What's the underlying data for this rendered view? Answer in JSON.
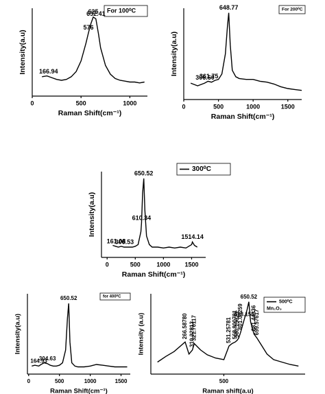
{
  "chart_data": [
    {
      "type": "line",
      "x_label": "Raman Shift(cm⁻¹)",
      "y_label": "Intensity(a.u)",
      "x": [
        100,
        150,
        200,
        250,
        300,
        350,
        400,
        450,
        500,
        550,
        576,
        600,
        625,
        652,
        680,
        700,
        750,
        800,
        850,
        900,
        950,
        1000,
        1050,
        1100,
        1150
      ],
      "series": [
        {
          "name": "For 100⁰C",
          "color": "#000000",
          "values": [
            22,
            23,
            21,
            19,
            18,
            19,
            22,
            28,
            40,
            60,
            72,
            82,
            90,
            88,
            70,
            55,
            35,
            25,
            20,
            18,
            17,
            16,
            16,
            15,
            16
          ]
        }
      ],
      "xlim": [
        0,
        1180
      ],
      "xticks": [
        0,
        500,
        1000
      ],
      "ylim": [
        0,
        100
      ],
      "annotations": [
        {
          "label": "166.94",
          "x": 166.94
        },
        {
          "label": "576",
          "x": 576
        },
        {
          "label": "625",
          "x": 625
        },
        {
          "label": "652.41",
          "x": 652.41
        }
      ]
    },
    {
      "type": "line",
      "x_label": "Raman Shift(cm⁻¹)",
      "y_label": "Intensity(a.u)",
      "x": [
        100,
        200,
        300,
        350,
        400,
        450,
        500,
        550,
        600,
        630,
        648.77,
        670,
        700,
        750,
        800,
        900,
        1000,
        1100,
        1200,
        1300,
        1400,
        1500,
        1600,
        1700
      ],
      "series": [
        {
          "name": "For 200⁰C",
          "color": "#000000",
          "values": [
            18,
            15,
            18,
            20,
            19,
            21,
            22,
            28,
            50,
            80,
            95,
            60,
            32,
            25,
            23,
            22,
            22,
            20,
            19,
            17,
            14,
            12,
            11,
            10
          ]
        }
      ],
      "xlim": [
        0,
        1700
      ],
      "xticks": [
        0,
        500,
        1000,
        1500
      ],
      "ylim": [
        0,
        100
      ],
      "annotations": [
        {
          "label": "306.60",
          "x": 306.6
        },
        {
          "label": "361.75",
          "x": 361.75
        },
        {
          "label": "648.77",
          "x": 648.77
        }
      ]
    },
    {
      "type": "line",
      "x_label": "Raman Shift(cm⁻¹)",
      "y_label": "Intensity(a.u)",
      "x": [
        100,
        150,
        200,
        250,
        300,
        350,
        400,
        450,
        500,
        550,
        600,
        610.34,
        630,
        650.52,
        670,
        700,
        750,
        800,
        900,
        1000,
        1100,
        1200,
        1300,
        1400,
        1500,
        1514.14,
        1550,
        1600
      ],
      "series": [
        {
          "name": "300⁰C",
          "color": "#000000",
          "values": [
            14,
            13,
            12,
            13,
            12,
            12,
            12,
            12,
            13,
            15,
            30,
            40,
            75,
            92,
            55,
            25,
            15,
            12,
            12,
            11,
            12,
            11,
            12,
            11,
            15,
            18,
            14,
            12
          ]
        }
      ],
      "xlim": [
        -100,
        1750
      ],
      "xticks": [
        0,
        500,
        1000,
        1500
      ],
      "ylim": [
        0,
        100
      ],
      "annotations": [
        {
          "label": "161.08",
          "x": 161.08
        },
        {
          "label": "306.53",
          "x": 306.53
        },
        {
          "label": "610.34",
          "x": 610.34
        },
        {
          "label": "650.52",
          "x": 650.52
        },
        {
          "label": "1514.14",
          "x": 1514.14
        }
      ]
    },
    {
      "type": "line",
      "x_label": "Raman Shift(cm⁻¹)",
      "y_label": "Intensity(a.u)",
      "x": [
        50,
        100,
        164.93,
        200,
        250,
        304.63,
        350,
        400,
        450,
        500,
        550,
        600,
        630,
        650.52,
        670,
        700,
        750,
        800,
        900,
        1000,
        1100,
        1200,
        1300,
        1400,
        1500,
        1600
      ],
      "series": [
        {
          "name": "for 400⁰C",
          "color": "#000000",
          "values": [
            10,
            11,
            10,
            12,
            14,
            13,
            11,
            10,
            10,
            11,
            14,
            30,
            70,
            88,
            40,
            14,
            10,
            9,
            9,
            10,
            12,
            11,
            10,
            9,
            9,
            9
          ]
        }
      ],
      "xlim": [
        -20,
        1650
      ],
      "xticks": [
        0,
        500,
        1000,
        1500
      ],
      "ylim": [
        0,
        100
      ],
      "annotations": [
        {
          "label": "164.93",
          "x": 164.93
        },
        {
          "label": "304.63",
          "x": 304.63
        },
        {
          "label": "650.52",
          "x": 650.52
        }
      ]
    },
    {
      "type": "line",
      "x_label": "Raman shift(a.u)",
      "y_label": "Intensity (a.u)",
      "x": [
        100,
        150,
        200,
        266.58,
        290,
        310.33,
        321.7,
        360,
        400,
        450,
        500,
        531.26,
        550,
        568.8,
        580,
        590,
        601.04,
        623.15,
        640,
        650.52,
        661.44,
        681.44,
        699.58,
        730,
        760,
        800,
        850,
        900,
        950
      ],
      "series": [
        {
          "name": "500⁰C",
          "color": "#000000",
          "values": [
            15,
            22,
            28,
            40,
            25,
            30,
            38,
            30,
            24,
            20,
            18,
            35,
            38,
            40,
            42,
            45,
            52,
            68,
            80,
            90,
            65,
            50,
            45,
            35,
            25,
            18,
            15,
            12,
            10
          ]
        }
      ],
      "legend_note": "Mn₂O₃",
      "xlim": [
        60,
        990
      ],
      "xticks": [
        500
      ],
      "ylim": [
        0,
        100
      ],
      "annotations": [
        {
          "label": "266.58780",
          "x": 266.58,
          "vertical": true
        },
        {
          "label": "310.32813",
          "x": 310.33,
          "vertical": true
        },
        {
          "label": "321.70117",
          "x": 321.7,
          "vertical": true
        },
        {
          "label": "531.25781",
          "x": 531.26,
          "vertical": true
        },
        {
          "label": "568.800781",
          "x": 568.8,
          "vertical": true
        },
        {
          "label": "580.15625",
          "x": 580,
          "vertical": true
        },
        {
          "label": "601.04259",
          "x": 601.04,
          "vertical": true
        },
        {
          "label": "623.154",
          "x": 623.15
        },
        {
          "label": "650.52",
          "x": 650.52
        },
        {
          "label": "681.44336",
          "x": 681.44,
          "vertical": true
        },
        {
          "label": "699.57617",
          "x": 699.58,
          "vertical": true
        }
      ]
    }
  ]
}
